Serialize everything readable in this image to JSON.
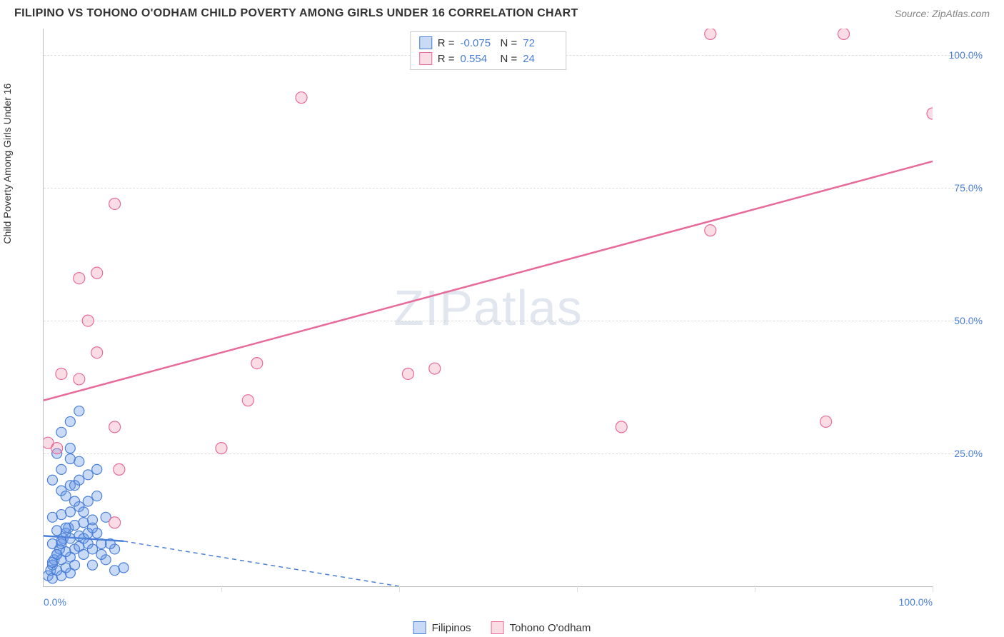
{
  "title": "FILIPINO VS TOHONO O'ODHAM CHILD POVERTY AMONG GIRLS UNDER 16 CORRELATION CHART",
  "source_label": "Source: ZipAtlas.com",
  "y_axis_label": "Child Poverty Among Girls Under 16",
  "watermark": {
    "bold": "ZIP",
    "thin": "atlas"
  },
  "chart": {
    "type": "scatter",
    "xlim": [
      0,
      100
    ],
    "ylim": [
      0,
      105
    ],
    "x_ticks": [
      0,
      20,
      40,
      60,
      80,
      100
    ],
    "x_tick_labels": {
      "0": "0.0%",
      "100": "100.0%"
    },
    "y_ticks": [
      25,
      50,
      75,
      100
    ],
    "y_tick_labels": {
      "25": "25.0%",
      "50": "50.0%",
      "75": "75.0%",
      "100": "100.0%"
    },
    "grid_color": "#dddddd",
    "axis_color": "#bbbbbb",
    "background_color": "#ffffff",
    "tick_label_color": "#4a7fd8",
    "series": [
      {
        "name": "Filipinos",
        "fill": "rgba(100,150,230,0.35)",
        "stroke": "#4a7fd8",
        "marker_r": 7,
        "R": "-0.075",
        "N": "72",
        "trend": {
          "x1": 0,
          "y1": 9.5,
          "x2": 9,
          "y2": 8.5,
          "dash_ext_x2": 40,
          "dash_ext_y2": 0
        },
        "points": [
          [
            0.5,
            2
          ],
          [
            0.8,
            3
          ],
          [
            1,
            4
          ],
          [
            1.2,
            5
          ],
          [
            1.5,
            6
          ],
          [
            1.8,
            7
          ],
          [
            2,
            8
          ],
          [
            2.2,
            9
          ],
          [
            2.5,
            10
          ],
          [
            2.8,
            11
          ],
          [
            1,
            1.5
          ],
          [
            2,
            2
          ],
          [
            3,
            2.5
          ],
          [
            1.5,
            3
          ],
          [
            2.5,
            3.5
          ],
          [
            3.5,
            4
          ],
          [
            1,
            4.5
          ],
          [
            2,
            5
          ],
          [
            3,
            5.5
          ],
          [
            1.5,
            6
          ],
          [
            2.5,
            6.5
          ],
          [
            3.5,
            7
          ],
          [
            4,
            7.5
          ],
          [
            1,
            8
          ],
          [
            2,
            8.5
          ],
          [
            3,
            9
          ],
          [
            4,
            9.5
          ],
          [
            5,
            10
          ],
          [
            1.5,
            10.5
          ],
          [
            2.5,
            11
          ],
          [
            3.5,
            11.5
          ],
          [
            4.5,
            12
          ],
          [
            5.5,
            12.5
          ],
          [
            1,
            13
          ],
          [
            2,
            13.5
          ],
          [
            3,
            14
          ],
          [
            4,
            15
          ],
          [
            5,
            16
          ],
          [
            6,
            17
          ],
          [
            2,
            18
          ],
          [
            3,
            19
          ],
          [
            4,
            20
          ],
          [
            5,
            21
          ],
          [
            6,
            22
          ],
          [
            3,
            26
          ],
          [
            4,
            23.5
          ],
          [
            7,
            13
          ],
          [
            8,
            3
          ],
          [
            9,
            3.5
          ],
          [
            4.5,
            6
          ],
          [
            5,
            8
          ],
          [
            6,
            10
          ],
          [
            7,
            5
          ],
          [
            8,
            7
          ],
          [
            5.5,
            4
          ],
          [
            6.5,
            6
          ],
          [
            7.5,
            8
          ],
          [
            4,
            33
          ],
          [
            3,
            31
          ],
          [
            2,
            29
          ],
          [
            1.5,
            25
          ],
          [
            3.5,
            16
          ],
          [
            4.5,
            14
          ],
          [
            5.5,
            11
          ],
          [
            6.5,
            8
          ],
          [
            1,
            20
          ],
          [
            2,
            22
          ],
          [
            3,
            24
          ],
          [
            2.5,
            17
          ],
          [
            3.5,
            19
          ],
          [
            4.5,
            9
          ],
          [
            5.5,
            7
          ]
        ]
      },
      {
        "name": "Tohono O'odham",
        "fill": "rgba(240,140,170,0.3)",
        "stroke": "#e86a9a",
        "marker_r": 8,
        "R": "0.554",
        "N": "24",
        "trend": {
          "x1": 0,
          "y1": 35,
          "x2": 100,
          "y2": 80
        },
        "points": [
          [
            0.5,
            27
          ],
          [
            1.5,
            26
          ],
          [
            2,
            40
          ],
          [
            4,
            39
          ],
          [
            5,
            50
          ],
          [
            6,
            44
          ],
          [
            8,
            72
          ],
          [
            4,
            58
          ],
          [
            6,
            59
          ],
          [
            8,
            30
          ],
          [
            8.5,
            22
          ],
          [
            8,
            12
          ],
          [
            20,
            26
          ],
          [
            23,
            35
          ],
          [
            24,
            42
          ],
          [
            29,
            92
          ],
          [
            41,
            40
          ],
          [
            44,
            41
          ],
          [
            65,
            30
          ],
          [
            75,
            67
          ],
          [
            75,
            104
          ],
          [
            90,
            104
          ],
          [
            88,
            31
          ],
          [
            100,
            89
          ]
        ]
      }
    ]
  },
  "stats_box": {
    "rows": [
      {
        "swatch_fill": "rgba(100,150,230,0.35)",
        "swatch_stroke": "#4a7fd8",
        "R_label": "R =",
        "R": "-0.075",
        "N_label": "N =",
        "N": "72"
      },
      {
        "swatch_fill": "rgba(240,140,170,0.3)",
        "swatch_stroke": "#e86a9a",
        "R_label": "R =",
        "R": "0.554",
        "N_label": "N =",
        "N": "24"
      }
    ]
  },
  "bottom_legend": [
    {
      "swatch_fill": "rgba(100,150,230,0.35)",
      "swatch_stroke": "#4a7fd8",
      "label": "Filipinos"
    },
    {
      "swatch_fill": "rgba(240,140,170,0.3)",
      "swatch_stroke": "#e86a9a",
      "label": "Tohono O'odham"
    }
  ]
}
